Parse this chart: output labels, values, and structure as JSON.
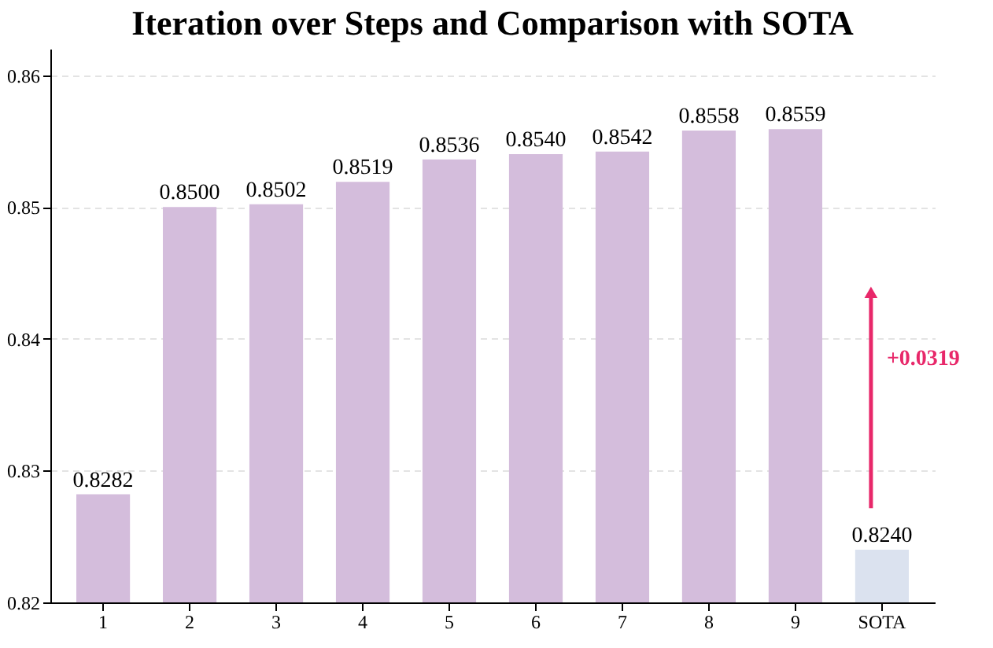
{
  "chart_data": {
    "type": "bar",
    "title": "Iteration over Steps and Comparison with SOTA",
    "categories": [
      "1",
      "2",
      "3",
      "4",
      "5",
      "6",
      "7",
      "8",
      "9",
      "SOTA"
    ],
    "values": [
      0.8282,
      0.85,
      0.8502,
      0.8519,
      0.8536,
      0.854,
      0.8542,
      0.8558,
      0.8559,
      0.824
    ],
    "colors": [
      "#d4bddc",
      "#d4bddc",
      "#d4bddc",
      "#d4bddc",
      "#d4bddc",
      "#d4bddc",
      "#d4bddc",
      "#d4bddc",
      "#d4bddc",
      "#dbe2ef"
    ],
    "value_labels": [
      "0.8282",
      "0.8500",
      "0.8502",
      "0.8519",
      "0.8536",
      "0.8540",
      "0.8542",
      "0.8558",
      "0.8559",
      "0.8240"
    ],
    "ylim": [
      0.82,
      0.862
    ],
    "yticks": [
      0.82,
      0.83,
      0.84,
      0.85,
      0.86
    ],
    "grid": "y",
    "annotations": [
      "+0.0319"
    ]
  }
}
